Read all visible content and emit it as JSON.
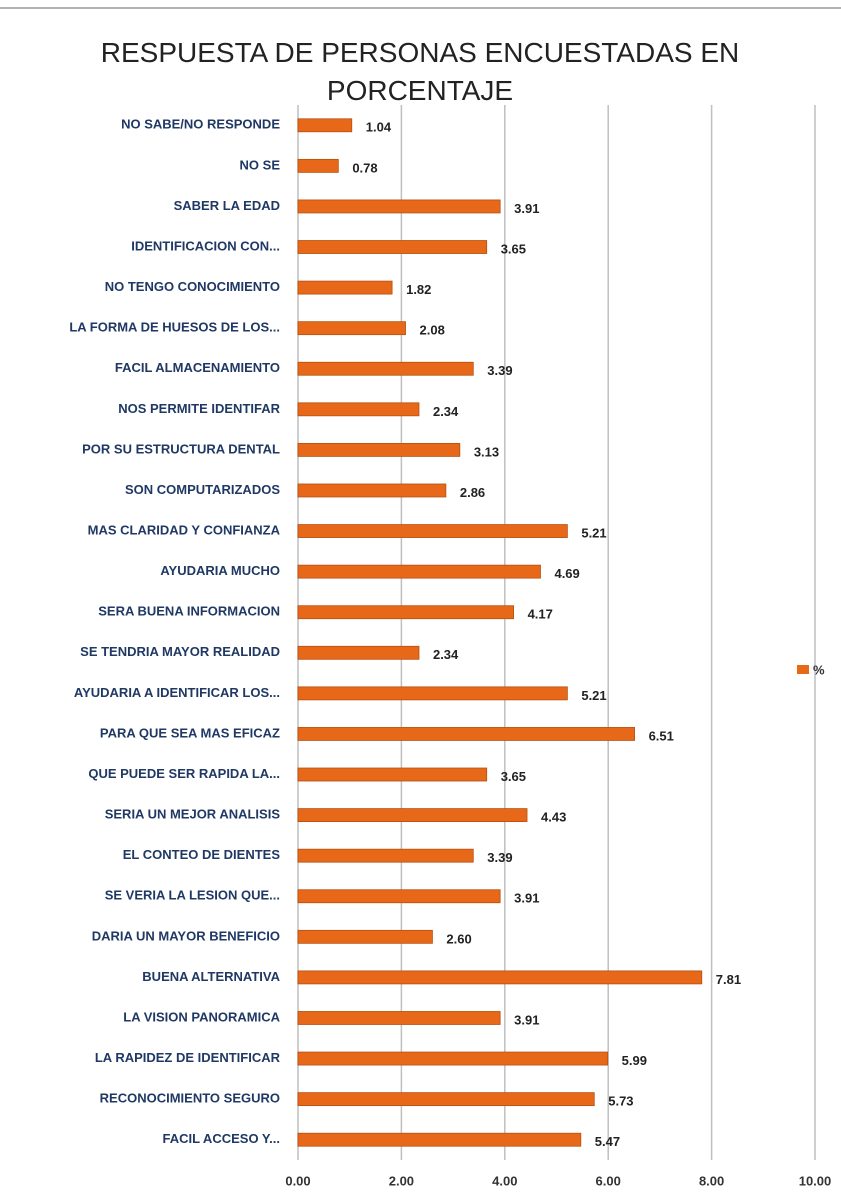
{
  "chart_data": {
    "type": "hbar",
    "title": "RESPUESTA DE PERSONAS ENCUESTADAS EN PORCENTAJE",
    "categories": [
      "NO SABE/NO RESPONDE",
      "NO SE",
      "SABER LA EDAD",
      "IDENTIFICACION CON...",
      "NO TENGO CONOCIMIENTO",
      "LA FORMA DE HUESOS DE LOS...",
      "FACIL ALMACENAMIENTO",
      "NOS PERMITE IDENTIFAR",
      "POR SU ESTRUCTURA DENTAL",
      "SON COMPUTARIZADOS",
      "MAS CLARIDAD Y CONFIANZA",
      "AYUDARIA MUCHO",
      "SERA BUENA INFORMACION",
      "SE TENDRIA MAYOR REALIDAD",
      "AYUDARIA A IDENTIFICAR LOS...",
      "PARA QUE SEA MAS EFICAZ",
      "QUE PUEDE SER RAPIDA LA...",
      "SERIA UN MEJOR ANALISIS",
      "EL CONTEO DE DIENTES",
      "SE VERIA LA LESION QUE...",
      "DARIA UN MAYOR BENEFICIO",
      "BUENA ALTERNATIVA",
      "LA VISION PANORAMICA",
      "LA RAPIDEZ DE IDENTIFICAR",
      "RECONOCIMIENTO SEGURO",
      "FACIL ACCESO Y..."
    ],
    "series": [
      {
        "name": "%",
        "color": "#e8681a",
        "values": [
          1.04,
          0.78,
          3.91,
          3.65,
          1.82,
          2.08,
          3.39,
          2.34,
          3.13,
          2.86,
          5.21,
          4.69,
          4.17,
          2.34,
          5.21,
          6.51,
          3.65,
          4.43,
          3.39,
          3.91,
          2.6,
          7.81,
          3.91,
          5.99,
          5.73,
          5.47
        ],
        "value_labels": [
          "1.04",
          "0.78",
          "3.91",
          "3.65",
          "1.82",
          "2.08",
          "3.39",
          "2.34",
          "3.13",
          "2.86",
          "5.21",
          "4.69",
          "4.17",
          "2.34",
          "5.21",
          "6.51",
          "3.65",
          "4.43",
          "3.39",
          "3.91",
          "2.60",
          "7.81",
          "3.91",
          "5.99",
          "5.73",
          "5.47"
        ]
      }
    ],
    "xlim": [
      0,
      10
    ],
    "xticks": [
      {
        "value": 0,
        "label": "0.00"
      },
      {
        "value": 2,
        "label": "2.00"
      },
      {
        "value": 4,
        "label": "4.00"
      },
      {
        "value": 6,
        "label": "6.00"
      },
      {
        "value": 8,
        "label": "8.00"
      },
      {
        "value": 10,
        "label": "10.00"
      }
    ],
    "grid": true,
    "legend": "right"
  }
}
